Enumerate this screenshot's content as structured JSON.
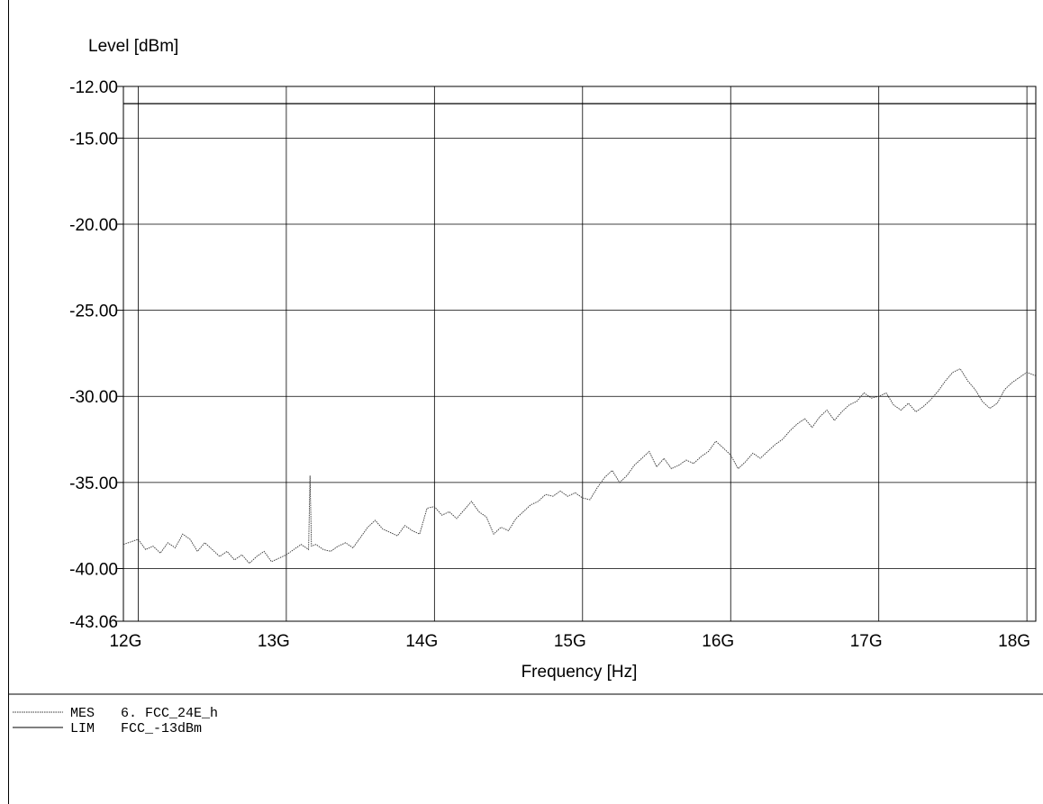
{
  "chart_data": {
    "type": "line",
    "title": "",
    "ylabel": "Level [dBm]",
    "xlabel": "Frequency [Hz]",
    "xlim": [
      11.9,
      18.06
    ],
    "ylim": [
      -43.06,
      -12.0
    ],
    "x_ticks": [
      {
        "value": 12,
        "label": "12G"
      },
      {
        "value": 13,
        "label": "13G"
      },
      {
        "value": 14,
        "label": "14G"
      },
      {
        "value": 15,
        "label": "15G"
      },
      {
        "value": 16,
        "label": "16G"
      },
      {
        "value": 17,
        "label": "17G"
      },
      {
        "value": 18,
        "label": "18G"
      }
    ],
    "y_ticks": [
      {
        "value": -12.0,
        "label": "-12.00"
      },
      {
        "value": -15.0,
        "label": "-15.00"
      },
      {
        "value": -20.0,
        "label": "-20.00"
      },
      {
        "value": -25.0,
        "label": "-25.00"
      },
      {
        "value": -30.0,
        "label": "-30.00"
      },
      {
        "value": -35.0,
        "label": "-35.00"
      },
      {
        "value": -40.0,
        "label": "-40.00"
      },
      {
        "value": -43.06,
        "label": "-43.06"
      }
    ],
    "grid": true,
    "series": [
      {
        "name": "6. FCC_24E_h",
        "legend_code": "MES",
        "style": "dotted",
        "color": "#333333",
        "x": [
          11.9,
          12.0,
          12.05,
          12.1,
          12.15,
          12.2,
          12.25,
          12.3,
          12.35,
          12.4,
          12.45,
          12.5,
          12.55,
          12.6,
          12.65,
          12.7,
          12.75,
          12.8,
          12.85,
          12.9,
          12.95,
          13.0,
          13.05,
          13.1,
          13.15,
          13.16,
          13.17,
          13.2,
          13.25,
          13.3,
          13.35,
          13.4,
          13.45,
          13.5,
          13.55,
          13.6,
          13.65,
          13.7,
          13.75,
          13.8,
          13.85,
          13.9,
          13.95,
          14.0,
          14.05,
          14.1,
          14.15,
          14.2,
          14.25,
          14.3,
          14.35,
          14.4,
          14.45,
          14.5,
          14.55,
          14.6,
          14.65,
          14.7,
          14.75,
          14.8,
          14.85,
          14.9,
          14.95,
          15.0,
          15.05,
          15.1,
          15.15,
          15.2,
          15.25,
          15.3,
          15.35,
          15.4,
          15.45,
          15.5,
          15.55,
          15.6,
          15.65,
          15.7,
          15.75,
          15.8,
          15.85,
          15.9,
          15.95,
          16.0,
          16.05,
          16.1,
          16.15,
          16.2,
          16.25,
          16.3,
          16.35,
          16.4,
          16.45,
          16.5,
          16.55,
          16.6,
          16.65,
          16.7,
          16.75,
          16.8,
          16.85,
          16.9,
          16.95,
          17.0,
          17.05,
          17.1,
          17.15,
          17.2,
          17.25,
          17.3,
          17.35,
          17.4,
          17.45,
          17.5,
          17.55,
          17.6,
          17.65,
          17.7,
          17.75,
          17.8,
          17.85,
          17.9,
          17.95,
          18.0,
          18.06
        ],
        "y": [
          -38.6,
          -38.3,
          -38.9,
          -38.7,
          -39.1,
          -38.5,
          -38.8,
          -38.0,
          -38.3,
          -39.0,
          -38.5,
          -38.9,
          -39.3,
          -39.0,
          -39.5,
          -39.2,
          -39.7,
          -39.3,
          -39.0,
          -39.6,
          -39.4,
          -39.2,
          -38.9,
          -38.6,
          -38.9,
          -34.6,
          -38.7,
          -38.6,
          -38.9,
          -39.0,
          -38.7,
          -38.5,
          -38.8,
          -38.2,
          -37.6,
          -37.2,
          -37.7,
          -37.9,
          -38.1,
          -37.5,
          -37.8,
          -38.0,
          -36.5,
          -36.4,
          -36.9,
          -36.7,
          -37.1,
          -36.6,
          -36.1,
          -36.7,
          -37.0,
          -38.0,
          -37.6,
          -37.8,
          -37.1,
          -36.7,
          -36.3,
          -36.1,
          -35.7,
          -35.8,
          -35.5,
          -35.8,
          -35.6,
          -35.9,
          -36.0,
          -35.3,
          -34.7,
          -34.3,
          -35.0,
          -34.6,
          -34.0,
          -33.6,
          -33.2,
          -34.1,
          -33.6,
          -34.2,
          -34.0,
          -33.7,
          -33.9,
          -33.5,
          -33.2,
          -32.6,
          -33.0,
          -33.4,
          -34.2,
          -33.8,
          -33.3,
          -33.6,
          -33.2,
          -32.8,
          -32.5,
          -32.0,
          -31.6,
          -31.3,
          -31.8,
          -31.2,
          -30.8,
          -31.4,
          -30.9,
          -30.5,
          -30.3,
          -29.8,
          -30.1,
          -30.0,
          -29.8,
          -30.5,
          -30.8,
          -30.4,
          -30.9,
          -30.6,
          -30.2,
          -29.7,
          -29.1,
          -28.6,
          -28.4,
          -29.1,
          -29.6,
          -30.3,
          -30.7,
          -30.4,
          -29.6,
          -29.2,
          -28.9,
          -28.6,
          -28.8
        ]
      },
      {
        "name": "FCC_-13dBm",
        "legend_code": "LIM",
        "style": "solid",
        "color": "#000000",
        "x": [
          11.9,
          18.06
        ],
        "y": [
          -13.0,
          -13.0
        ]
      }
    ],
    "legend_placement": "bottom-left"
  }
}
